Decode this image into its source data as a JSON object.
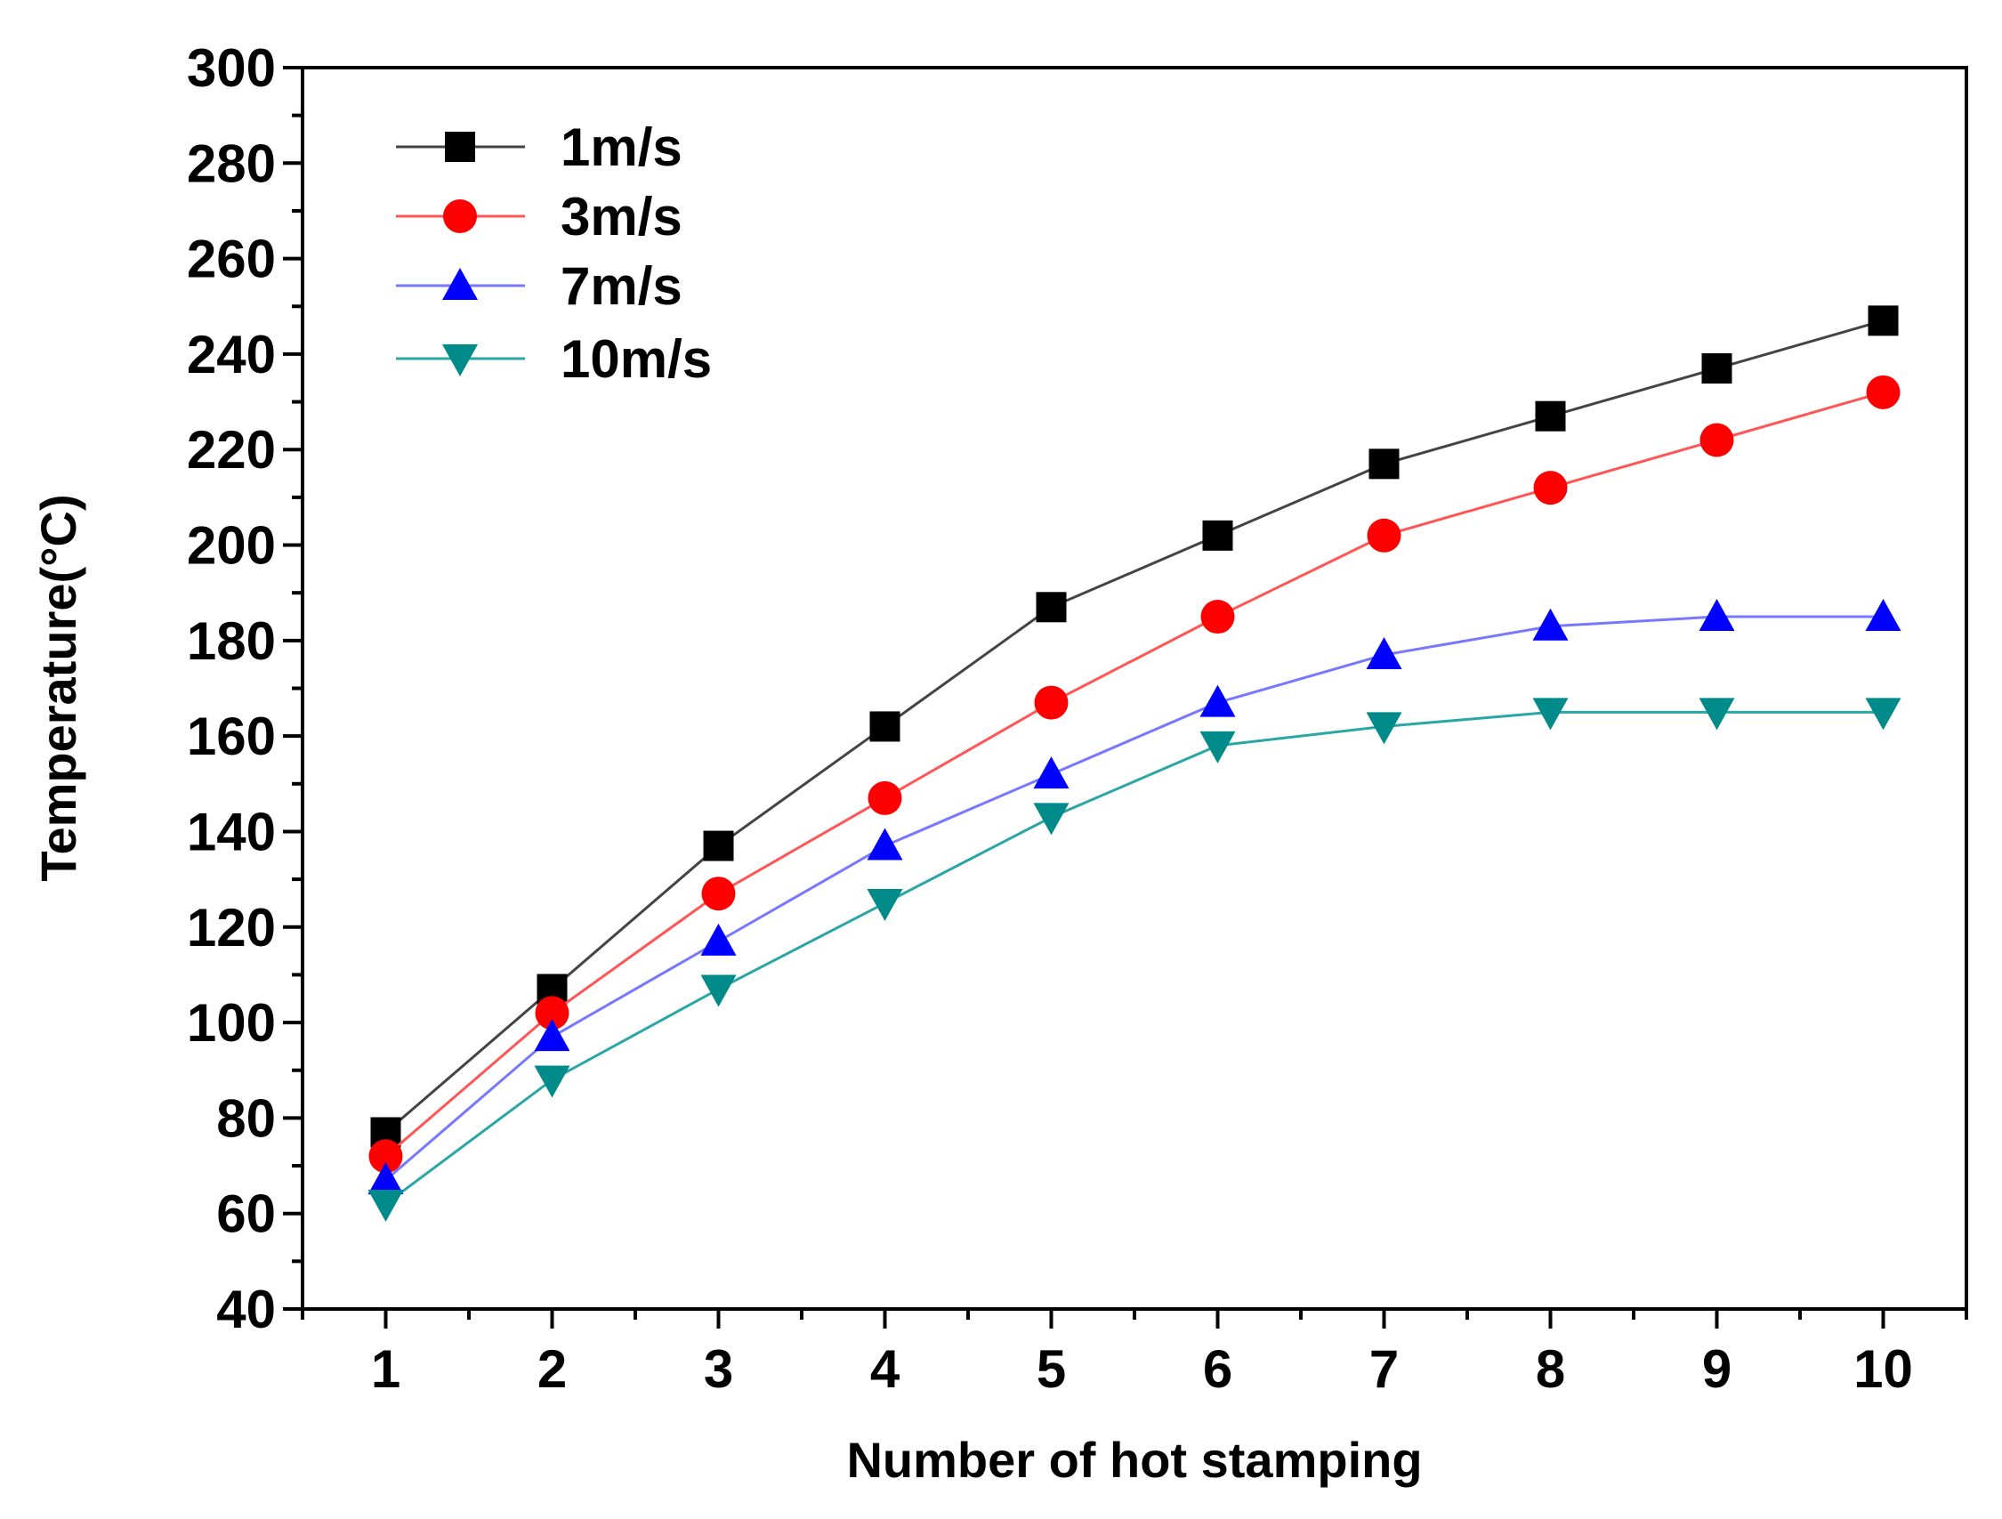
{
  "chart_data": {
    "type": "line",
    "title": "",
    "xlabel": "Number of hot stamping",
    "ylabel": "Temperature(°C)",
    "x": [
      1,
      2,
      3,
      4,
      5,
      6,
      7,
      8,
      9,
      10
    ],
    "xlim": [
      0.5,
      10.5
    ],
    "ylim": [
      40,
      300
    ],
    "x_ticks": [
      1,
      2,
      3,
      4,
      5,
      6,
      7,
      8,
      9,
      10
    ],
    "y_ticks": [
      40,
      60,
      80,
      100,
      120,
      140,
      160,
      180,
      200,
      220,
      240,
      260,
      280,
      300
    ],
    "grid": false,
    "legend_position": "top-left",
    "series": [
      {
        "name": "1m/s",
        "marker": "square",
        "color": "#000000",
        "line_color": "#444444",
        "values": [
          77,
          107,
          137,
          162,
          187,
          202,
          217,
          227,
          237,
          247
        ]
      },
      {
        "name": "3m/s",
        "marker": "circle",
        "color": "#ff0000",
        "line_color": "#ff5555",
        "values": [
          72,
          102,
          127,
          147,
          167,
          185,
          202,
          212,
          222,
          232
        ]
      },
      {
        "name": "7m/s",
        "marker": "triangle-up",
        "color": "#0000ff",
        "line_color": "#7777ff",
        "values": [
          67,
          97,
          117,
          137,
          152,
          167,
          177,
          183,
          185,
          185
        ]
      },
      {
        "name": "10m/s",
        "marker": "triangle-down",
        "color": "#008b8b",
        "line_color": "#2aa6a6",
        "values": [
          62,
          88,
          107,
          125,
          143,
          158,
          162,
          165,
          165,
          165
        ]
      }
    ]
  }
}
